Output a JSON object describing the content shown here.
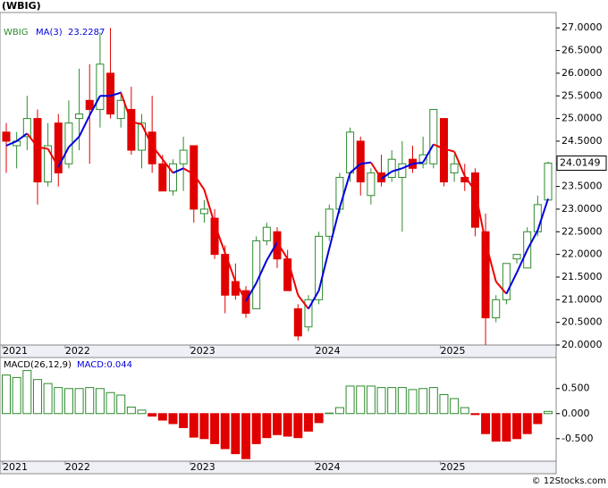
{
  "title": "(WBIG)",
  "footer": "© 12Stocks.com",
  "chart_data": [
    {
      "type": "candlestick",
      "name": "WBIG",
      "categories": [
        "2021",
        null,
        null,
        null,
        null,
        null,
        "2022",
        null,
        null,
        null,
        null,
        null,
        null,
        null,
        null,
        null,
        null,
        null,
        "2023",
        null,
        null,
        null,
        null,
        null,
        null,
        null,
        null,
        null,
        null,
        null,
        "2024",
        null,
        null,
        null,
        null,
        null,
        null,
        null,
        null,
        null,
        null,
        null,
        "2025",
        null,
        null,
        null,
        null,
        null,
        null,
        null,
        null,
        null,
        null
      ],
      "open": [
        24.7,
        24.4,
        24.6,
        25.0,
        23.6,
        24.9,
        24.0,
        25.0,
        25.4,
        25.2,
        26.0,
        25.0,
        25.2,
        24.3,
        24.7,
        24.0,
        23.4,
        24.0,
        24.4,
        22.9,
        22.8,
        22.0,
        21.4,
        21.2,
        20.8,
        22.3,
        22.5,
        21.9,
        20.8,
        20.4,
        21.0,
        22.4,
        23.0,
        23.8,
        24.5,
        23.3,
        23.8,
        23.7,
        23.7,
        24.1,
        24.0,
        24.0,
        25.0,
        23.8,
        23.7,
        23.8,
        22.5,
        20.6,
        21.0,
        21.9,
        21.7,
        22.5,
        23.2
      ],
      "high": [
        24.9,
        24.7,
        25.5,
        25.2,
        24.9,
        25.1,
        25.4,
        26.1,
        26.2,
        26.9,
        27.0,
        25.6,
        25.7,
        25.1,
        25.5,
        24.2,
        24.1,
        24.6,
        24.4,
        23.2,
        23.0,
        22.2,
        21.8,
        21.3,
        22.4,
        22.7,
        22.6,
        22.1,
        20.9,
        21.1,
        22.5,
        23.1,
        23.8,
        24.8,
        24.6,
        23.9,
        24.2,
        24.3,
        24.5,
        24.4,
        24.6,
        25.2,
        25.0,
        24.2,
        24.0,
        23.9,
        22.9,
        21.1,
        21.8,
        22.0,
        22.6,
        23.3,
        24.05
      ],
      "low": [
        23.8,
        23.9,
        24.3,
        23.1,
        23.5,
        23.5,
        23.9,
        24.3,
        24.0,
        24.8,
        25.0,
        24.8,
        24.2,
        23.9,
        23.8,
        23.4,
        23.3,
        23.4,
        22.7,
        22.7,
        21.9,
        20.7,
        21.0,
        20.6,
        20.8,
        22.2,
        21.7,
        21.2,
        20.1,
        20.3,
        20.9,
        22.3,
        22.9,
        23.6,
        23.3,
        23.1,
        23.5,
        23.6,
        22.5,
        23.8,
        23.9,
        23.9,
        23.5,
        23.6,
        23.4,
        22.4,
        20.0,
        20.5,
        20.9,
        21.8,
        21.7,
        22.4,
        23.2
      ],
      "close": [
        24.5,
        24.5,
        25.0,
        23.6,
        24.4,
        23.8,
        24.9,
        25.1,
        25.2,
        26.2,
        25.1,
        25.4,
        24.3,
        24.9,
        24.0,
        23.4,
        24.0,
        24.3,
        23.0,
        23.0,
        22.0,
        21.1,
        21.1,
        20.7,
        22.3,
        22.6,
        21.9,
        21.2,
        20.2,
        21.0,
        22.4,
        23.0,
        23.7,
        24.7,
        23.6,
        23.8,
        23.6,
        24.1,
        24.0,
        23.9,
        24.2,
        25.2,
        23.6,
        24.0,
        23.6,
        22.6,
        20.6,
        21.0,
        21.8,
        22.0,
        22.5,
        23.1,
        24.0149
      ],
      "up_color": "#2e8b2e",
      "down_color": "#e00000",
      "ma": {
        "name": "MA(3)",
        "up_color": "#0000dd",
        "down_color": "#ee0000",
        "values": [
          24.4,
          24.5,
          24.67,
          24.37,
          24.33,
          23.93,
          24.37,
          24.6,
          25.07,
          25.5,
          25.5,
          25.57,
          24.93,
          24.87,
          24.4,
          24.1,
          23.8,
          23.9,
          23.77,
          23.43,
          22.67,
          22.03,
          21.4,
          20.97,
          21.37,
          21.87,
          22.27,
          21.9,
          21.1,
          20.8,
          21.2,
          22.13,
          23.03,
          23.8,
          24.0,
          24.03,
          23.67,
          23.83,
          23.9,
          24.0,
          24.03,
          24.43,
          24.33,
          24.27,
          23.73,
          23.4,
          22.27,
          21.4,
          21.13,
          21.6,
          22.1,
          22.53,
          23.2287
        ]
      },
      "ylim": [
        20,
        27.34
      ],
      "yticks": [
        {
          "value": 20,
          "label": "20.0000"
        },
        {
          "value": 20.5,
          "label": "20.5000"
        },
        {
          "value": 21,
          "label": "21.0000"
        },
        {
          "value": 21.5,
          "label": "21.5000"
        },
        {
          "value": 22,
          "label": "22.0000"
        },
        {
          "value": 22.5,
          "label": "22.5000"
        },
        {
          "value": 23,
          "label": "23.0000"
        },
        {
          "value": 23.5,
          "label": "23.5000"
        },
        {
          "value": 24,
          "label": "24.0000"
        },
        {
          "value": 24.5,
          "label": "24.5000"
        },
        {
          "value": 25,
          "label": "25.0000"
        },
        {
          "value": 25.5,
          "label": "25.5000"
        },
        {
          "value": 26,
          "label": "26.0000"
        },
        {
          "value": 26.5,
          "label": "26.5000"
        },
        {
          "value": 27,
          "label": "27.0000"
        }
      ]
    },
    {
      "type": "bar",
      "name": "MACD(26,12,9)",
      "legend_value": "MACD:0.044",
      "categories": [
        "2021",
        null,
        null,
        null,
        null,
        null,
        "2022",
        null,
        null,
        null,
        null,
        null,
        null,
        null,
        null,
        null,
        null,
        null,
        "2023",
        null,
        null,
        null,
        null,
        null,
        null,
        null,
        null,
        null,
        null,
        null,
        "2024",
        null,
        null,
        null,
        null,
        null,
        null,
        null,
        null,
        null,
        null,
        null,
        "2025",
        null,
        null,
        null,
        null,
        null,
        null,
        null,
        null,
        null,
        null
      ],
      "values": [
        0.77,
        0.72,
        0.86,
        0.68,
        0.6,
        0.52,
        0.5,
        0.5,
        0.52,
        0.5,
        0.42,
        0.37,
        0.13,
        0.07,
        -0.05,
        -0.13,
        -0.2,
        -0.28,
        -0.47,
        -0.5,
        -0.6,
        -0.7,
        -0.8,
        -0.9,
        -0.6,
        -0.48,
        -0.42,
        -0.45,
        -0.48,
        -0.35,
        -0.18,
        0.01,
        0.12,
        0.55,
        0.55,
        0.55,
        0.52,
        0.52,
        0.52,
        0.48,
        0.5,
        0.52,
        0.38,
        0.3,
        0.12,
        -0.02,
        -0.4,
        -0.55,
        -0.55,
        -0.5,
        -0.4,
        -0.2,
        0.044
      ],
      "up_color": "#2e8b2e",
      "down_color": "#e00000",
      "legend_color": "#0000dd",
      "ylim": [
        -0.95,
        1.12
      ],
      "yticks": [
        {
          "value": -0.5,
          "label": "-0.500"
        },
        {
          "value": 0,
          "label": "0.000"
        },
        {
          "value": 0.5,
          "label": "0.500"
        }
      ]
    }
  ]
}
